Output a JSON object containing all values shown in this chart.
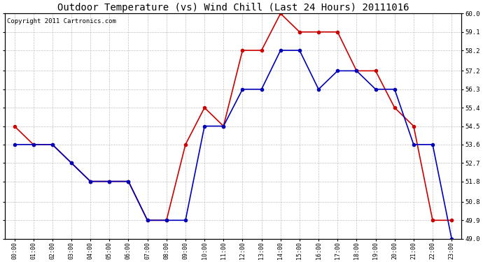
{
  "title": "Outdoor Temperature (vs) Wind Chill (Last 24 Hours) 20111016",
  "copyright": "Copyright 2011 Cartronics.com",
  "hours": [
    "00:00",
    "01:00",
    "02:00",
    "03:00",
    "04:00",
    "05:00",
    "06:00",
    "07:00",
    "08:00",
    "09:00",
    "10:00",
    "11:00",
    "12:00",
    "13:00",
    "14:00",
    "15:00",
    "16:00",
    "17:00",
    "18:00",
    "19:00",
    "20:00",
    "21:00",
    "22:00",
    "23:00"
  ],
  "temp": [
    54.5,
    53.6,
    53.6,
    52.7,
    51.8,
    51.8,
    51.8,
    49.9,
    49.9,
    53.6,
    55.4,
    54.5,
    58.2,
    58.2,
    60.0,
    59.1,
    59.1,
    59.1,
    57.2,
    57.2,
    55.4,
    54.5,
    49.9,
    49.9
  ],
  "windchill": [
    53.6,
    53.6,
    53.6,
    52.7,
    51.8,
    51.8,
    51.8,
    49.9,
    49.9,
    49.9,
    54.5,
    54.5,
    56.3,
    56.3,
    58.2,
    58.2,
    56.3,
    57.2,
    57.2,
    56.3,
    56.3,
    53.6,
    53.6,
    49.0
  ],
  "temp_color": "#cc0000",
  "windchill_color": "#0000bb",
  "ylim_min": 49.0,
  "ylim_max": 60.0,
  "yticks": [
    49.0,
    49.9,
    50.8,
    51.8,
    52.7,
    53.6,
    54.5,
    55.4,
    56.3,
    57.2,
    58.2,
    59.1,
    60.0
  ],
  "bg_color": "#ffffff",
  "grid_color": "#bbbbbb",
  "title_fontsize": 10,
  "copyright_fontsize": 6.5,
  "marker": "o",
  "linewidth": 1.2,
  "markersize": 3.0
}
